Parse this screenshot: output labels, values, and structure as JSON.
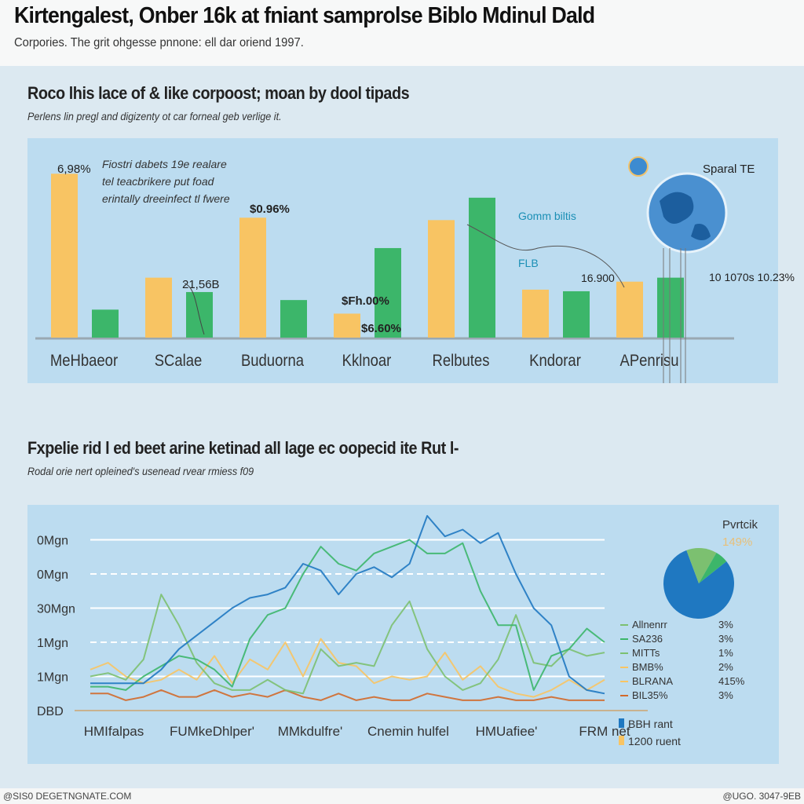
{
  "header": {
    "title": "Kirtengalest, Onber 16k at fniant samprolse Biblo Mdinul Dald",
    "subtitle": "Corpories. The grit ohgesse pnnone: ell dar oriend 1997."
  },
  "section1": {
    "title": "Roco lhis lace of & like corpoost; moan by dool tipads",
    "subtitle": "Perlens lin pregl and digizenty ot car forneal geb verlige it."
  },
  "section2": {
    "title": "Fxpelie rid l ed beet arine ketinad all lage ec oopecid ite Rut l-",
    "subtitle": "Rodal orie nert opleined's usenead rvear rmiess f09"
  },
  "colors": {
    "yellow": "#f8c463",
    "green": "#3cb66a",
    "blue": "#1f78c1",
    "light_green": "#7cc070",
    "orange": "#d2692a",
    "panel": "#bcdcf0"
  },
  "chart_data": [
    {
      "type": "bar",
      "categories": [
        "MeHbaeor",
        "SCalae",
        "Buduorna",
        "Kklnoar",
        "Relbutes",
        "Kndorar",
        "APenrisu"
      ],
      "series": [
        {
          "color": "yellow",
          "values": [
            205,
            75,
            150,
            30,
            147,
            60,
            70
          ]
        },
        {
          "color": "green",
          "values": [
            35,
            57,
            47,
            112,
            175,
            58,
            75
          ]
        }
      ],
      "ylim": [
        0,
        220
      ],
      "annotations": [
        {
          "text": "6,98%",
          "category": "MeHbaeor"
        },
        {
          "text": "Fiostri dabets 19e realare tel teacbrikere put foad erintally dreeinfect tl fwere",
          "category": "MeHbaeor"
        },
        {
          "text": "21,56B",
          "category": "SCalae"
        },
        {
          "text": "$0.96%",
          "category": "Buduorna"
        },
        {
          "text": "$6.60%",
          "category": "Kklnoar"
        },
        {
          "text": "$Fh.00%",
          "category": "Kklnoar"
        },
        {
          "text": "Gomm biltis",
          "category": "Relbutes"
        },
        {
          "text": "FLB",
          "category": "Relbutes"
        },
        {
          "text": "16.900",
          "category": "Kndorar"
        },
        {
          "text": "10 1070s 10.23%",
          "category": "APenrisu"
        },
        {
          "text": "Sparal TE",
          "category": "APenrisu"
        }
      ],
      "icon": "globe-icon"
    },
    {
      "type": "line",
      "ytick_labels": [
        "DBD",
        "1Mgn",
        "1Mgn",
        "30Mgn",
        "0Mgn",
        "0Mgn"
      ],
      "yticks": [
        0,
        1,
        2,
        3,
        4,
        5
      ],
      "ylim": [
        0,
        5.8
      ],
      "xtick_labels": [
        "HMIfalpas",
        "FUMkeDhlper'",
        "MMkdulfre'",
        "Cnemin hulfel",
        "HMUafiee'",
        "FRM net"
      ],
      "grid": true,
      "series": [
        {
          "color": "blue",
          "values": [
            0.8,
            0.8,
            0.8,
            0.8,
            1.2,
            1.8,
            2.2,
            2.6,
            3.0,
            3.3,
            3.4,
            3.6,
            4.3,
            4.1,
            3.4,
            4.0,
            4.2,
            3.9,
            4.3,
            5.7,
            5.1,
            5.3,
            4.9,
            5.2,
            4.0,
            3.0,
            2.5,
            1.0,
            0.6,
            0.5
          ]
        },
        {
          "color": "green",
          "values": [
            0.7,
            0.7,
            0.6,
            1.0,
            1.3,
            1.6,
            1.5,
            1.2,
            0.7,
            2.1,
            2.8,
            3.0,
            4.0,
            4.8,
            4.3,
            4.1,
            4.6,
            4.8,
            5.0,
            4.6,
            4.6,
            4.9,
            3.5,
            2.5,
            2.5,
            0.6,
            1.6,
            1.8,
            2.4,
            2.0
          ]
        },
        {
          "color": "light_green",
          "values": [
            1.0,
            1.1,
            0.9,
            1.5,
            3.4,
            2.5,
            1.4,
            0.8,
            0.6,
            0.6,
            0.9,
            0.6,
            0.5,
            1.8,
            1.3,
            1.4,
            1.3,
            2.5,
            3.2,
            1.8,
            1.0,
            0.6,
            0.8,
            1.5,
            2.8,
            1.4,
            1.3,
            1.8,
            1.6,
            1.7
          ]
        },
        {
          "color": "yellow",
          "values": [
            1.2,
            1.4,
            1.0,
            0.8,
            0.9,
            1.2,
            0.9,
            1.6,
            0.8,
            1.5,
            1.2,
            2.0,
            1.0,
            2.1,
            1.4,
            1.3,
            0.8,
            1.0,
            0.9,
            1.0,
            1.7,
            0.9,
            1.3,
            0.7,
            0.5,
            0.4,
            0.6,
            0.9,
            0.6,
            0.9
          ]
        },
        {
          "color": "orange",
          "values": [
            0.5,
            0.5,
            0.3,
            0.4,
            0.6,
            0.4,
            0.4,
            0.6,
            0.4,
            0.5,
            0.4,
            0.6,
            0.4,
            0.3,
            0.5,
            0.3,
            0.4,
            0.3,
            0.3,
            0.5,
            0.4,
            0.3,
            0.3,
            0.4,
            0.3,
            0.3,
            0.4,
            0.3,
            0.3,
            0.3
          ]
        }
      ]
    },
    {
      "type": "pie",
      "title": "Pvrtcik",
      "slices": [
        {
          "color": "blue",
          "value": 80
        },
        {
          "color": "light_green",
          "value": 14
        },
        {
          "color": "green",
          "value": 6
        }
      ],
      "label": "149%",
      "legend": [
        {
          "label": "Allnenrr",
          "value": "3%",
          "color": "light_green"
        },
        {
          "label": "SA236",
          "value": "3%",
          "color": "green"
        },
        {
          "label": "MITTs",
          "value": "1%",
          "color": "light_green"
        },
        {
          "label": "BMB%",
          "value": "2%",
          "color": "yellow"
        },
        {
          "label": "BLRANA",
          "value": "415%",
          "color": "yellow"
        },
        {
          "label": "BIL35%",
          "value": "3%",
          "color": "orange"
        }
      ],
      "bottom_legend": [
        {
          "label": "BBH rant",
          "color": "blue"
        },
        {
          "label": "1200 ruent",
          "color": "yellow"
        }
      ]
    }
  ],
  "footer": {
    "left": "@SIS0 DEGETNGNATE.COM",
    "right": "@UGO. 3047-9EB"
  }
}
